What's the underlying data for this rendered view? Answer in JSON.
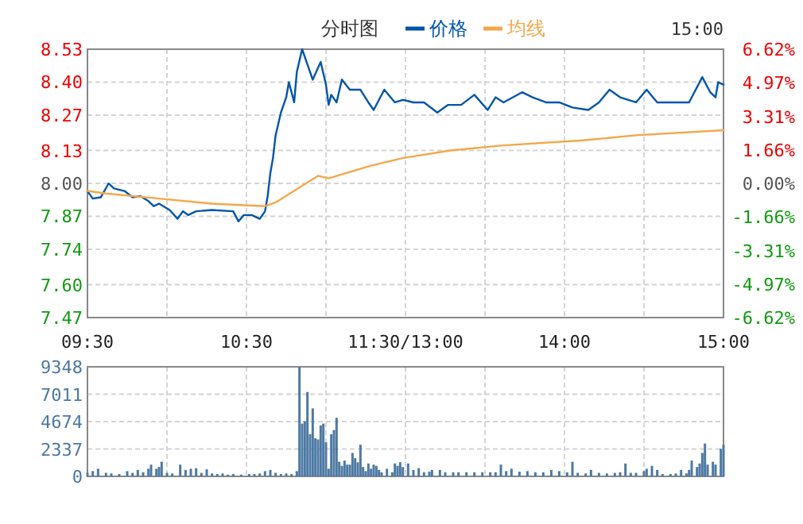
{
  "chart_data": [
    {
      "type": "line",
      "title": "分时图",
      "legend": "top",
      "grid": true,
      "annotations": [
        "15:00"
      ],
      "categories": [
        "09:30",
        null,
        null,
        null,
        null,
        null,
        null,
        null,
        null,
        null,
        null,
        null,
        null,
        null,
        null,
        null,
        null,
        null,
        null,
        null,
        null,
        null,
        null,
        null,
        null,
        null,
        null,
        null,
        null,
        null,
        null,
        null,
        null,
        null,
        null,
        null,
        null,
        null,
        null,
        null,
        null,
        null,
        null,
        null,
        null,
        null,
        null,
        null,
        null,
        null,
        null,
        null,
        null,
        null,
        null,
        null,
        null,
        null,
        null,
        null,
        "10:30",
        null,
        null,
        null,
        null,
        null,
        null,
        null,
        null,
        null,
        null,
        null,
        null,
        null,
        null,
        null,
        null,
        null,
        null,
        null,
        null,
        null,
        null,
        null,
        null,
        null,
        null,
        null,
        null,
        null,
        null,
        null,
        null,
        null,
        null,
        null,
        null,
        null,
        null,
        null,
        null,
        null,
        null,
        null,
        null,
        null,
        null,
        null,
        null,
        null,
        null,
        null,
        null,
        null,
        null,
        null,
        null,
        null,
        null,
        null,
        "11:30/13:00",
        null,
        null,
        null,
        null,
        null,
        null,
        null,
        null,
        null,
        null,
        null,
        null,
        null,
        null,
        null,
        null,
        null,
        null,
        null,
        null,
        null,
        null,
        null,
        null,
        null,
        null,
        null,
        null,
        null,
        null,
        null,
        null,
        null,
        null,
        null,
        null,
        null,
        null,
        null,
        null,
        null,
        null,
        null,
        null,
        null,
        null,
        null,
        null,
        null,
        null,
        null,
        null,
        null,
        null,
        null,
        null,
        null,
        null,
        null,
        "14:00",
        null,
        null,
        null,
        null,
        null,
        null,
        null,
        null,
        null,
        null,
        null,
        null,
        null,
        null,
        null,
        null,
        null,
        null,
        null,
        null,
        null,
        null,
        null,
        null,
        null,
        null,
        null,
        null,
        null,
        null,
        null,
        null,
        null,
        null,
        null,
        null,
        null,
        null,
        null,
        null,
        null,
        null,
        null,
        null,
        null,
        null,
        null,
        null,
        null,
        null,
        null,
        null,
        null,
        null,
        null,
        null,
        null,
        null,
        null,
        "15:00"
      ],
      "ylim": [
        7.47,
        8.53
      ],
      "yticks": [
        {
          "value": 7.47,
          "label": "7.47"
        },
        {
          "value": 7.6,
          "label": "7.60"
        },
        {
          "value": 7.74,
          "label": "7.74"
        },
        {
          "value": 7.87,
          "label": "7.87"
        },
        {
          "value": 8.0,
          "label": "8.00"
        },
        {
          "value": 8.13,
          "label": "8.13"
        },
        {
          "value": 8.27,
          "label": "8.27"
        },
        {
          "value": 8.4,
          "label": "8.40"
        },
        {
          "value": 8.53,
          "label": "8.53"
        }
      ],
      "y2lim": [
        -6.62,
        6.62
      ],
      "y2ticks": [
        {
          "value": -6.62,
          "label": "-6.62%"
        },
        {
          "value": -4.97,
          "label": "-4.97%"
        },
        {
          "value": -3.31,
          "label": "-3.31%"
        },
        {
          "value": -1.66,
          "label": "-1.66%"
        },
        {
          "value": 0,
          "label": "0.00%"
        },
        {
          "value": 1.66,
          "label": "1.66%"
        },
        {
          "value": 3.31,
          "label": "3.31%"
        },
        {
          "value": 4.97,
          "label": "4.97%"
        },
        {
          "value": 6.62,
          "label": "6.62%"
        }
      ],
      "series": [
        {
          "name": "价格",
          "color": "#0055aa",
          "values": [
            7.97,
            null,
            7.94,
            null,
            null,
            7.945,
            null,
            null,
            8.0,
            null,
            7.98,
            null,
            null,
            null,
            7.97,
            null,
            null,
            7.945,
            null,
            null,
            7.95,
            null,
            null,
            7.93,
            null,
            7.91,
            null,
            7.92,
            null,
            null,
            null,
            7.895,
            null,
            null,
            7.86,
            null,
            7.89,
            null,
            7.875,
            null,
            null,
            7.89,
            null,
            null,
            null,
            null,
            null,
            7.895,
            null,
            null,
            null,
            null,
            null,
            null,
            null,
            7.89,
            null,
            7.85,
            null,
            7.875,
            null,
            null,
            7.875,
            null,
            null,
            7.86,
            null,
            7.89,
            7.95,
            8.04,
            8.1,
            8.19,
            null,
            8.28,
            null,
            8.34,
            8.4,
            null,
            8.32,
            8.44,
            null,
            8.53,
            null,
            8.47,
            null,
            8.41,
            null,
            null,
            8.48,
            null,
            8.39,
            8.31,
            8.35,
            null,
            8.32,
            null,
            8.41,
            null,
            null,
            8.37,
            null,
            null,
            null,
            8.37,
            null,
            null,
            8.32,
            null,
            8.29,
            null,
            null,
            null,
            8.37,
            null,
            null,
            null,
            8.32,
            null,
            null,
            8.33,
            null,
            null,
            null,
            8.32,
            null,
            null,
            null,
            8.32,
            null,
            null,
            null,
            null,
            8.28,
            null,
            null,
            null,
            8.31,
            null,
            null,
            null,
            null,
            8.31,
            null,
            null,
            null,
            null,
            8.35,
            null,
            null,
            null,
            null,
            8.29,
            null,
            null,
            8.34,
            null,
            null,
            8.32,
            null,
            null,
            null,
            null,
            null,
            null,
            8.36,
            null,
            null,
            null,
            8.34,
            null,
            null,
            null,
            null,
            8.32,
            null,
            null,
            null,
            null,
            8.32,
            null,
            null,
            null,
            null,
            8.3,
            null,
            null,
            null,
            null,
            null,
            8.29,
            null,
            null,
            null,
            8.32,
            null,
            null,
            null,
            8.37,
            null,
            null,
            null,
            8.34,
            null,
            null,
            null,
            null,
            null,
            8.32,
            null,
            null,
            null,
            8.37,
            null,
            null,
            null,
            8.32,
            null,
            null,
            null,
            null,
            null,
            8.32,
            null,
            null,
            null,
            null,
            null,
            8.32,
            null,
            null,
            null,
            null,
            8.42,
            null,
            null,
            8.36,
            null,
            8.34,
            8.4,
            null,
            8.39
          ]
        },
        {
          "name": "均线",
          "color": "#f5a64a",
          "values": [
            7.97,
            null,
            null,
            null,
            null,
            null,
            null,
            7.96,
            null,
            null,
            null,
            null,
            null,
            null,
            null,
            null,
            null,
            null,
            null,
            null,
            null,
            null,
            null,
            null,
            null,
            null,
            null,
            7.94,
            null,
            null,
            null,
            null,
            null,
            null,
            null,
            null,
            null,
            null,
            null,
            null,
            null,
            null,
            null,
            null,
            null,
            null,
            null,
            7.92,
            null,
            null,
            null,
            null,
            null,
            null,
            null,
            null,
            null,
            null,
            null,
            null,
            null,
            null,
            null,
            null,
            null,
            null,
            null,
            7.91,
            null,
            null,
            null,
            7.925,
            null,
            null,
            null,
            null,
            null,
            null,
            null,
            null,
            null,
            null,
            null,
            null,
            null,
            null,
            null,
            8.03,
            null,
            null,
            null,
            8.02,
            null,
            null,
            null,
            null,
            null,
            null,
            null,
            null,
            null,
            null,
            null,
            null,
            null,
            null,
            null,
            8.07,
            null,
            null,
            null,
            null,
            null,
            null,
            null,
            null,
            null,
            null,
            null,
            8.1,
            null,
            null,
            null,
            null,
            null,
            null,
            null,
            null,
            null,
            null,
            null,
            null,
            null,
            null,
            null,
            null,
            null,
            8.13,
            null,
            null,
            null,
            null,
            null,
            null,
            null,
            null,
            null,
            null,
            null,
            null,
            null,
            null,
            null,
            null,
            null,
            null,
            null,
            8.15,
            null,
            null,
            null,
            null,
            null,
            null,
            null,
            null,
            null,
            null,
            null,
            null,
            null,
            null,
            null,
            null,
            null,
            null,
            null,
            null,
            null,
            null,
            null,
            null,
            null,
            null,
            null,
            null,
            null,
            8.17,
            null,
            null,
            null,
            null,
            null,
            null,
            null,
            null,
            null,
            null,
            null,
            null,
            null,
            null,
            null,
            null,
            null,
            null,
            null,
            8.19,
            null,
            null,
            null,
            null,
            null,
            null,
            null,
            null,
            null,
            null,
            null,
            null,
            null,
            null,
            null,
            null,
            null,
            null,
            null,
            null,
            null,
            null,
            null,
            null,
            null,
            null,
            null,
            null,
            null,
            null,
            null,
            null,
            8.21
          ]
        }
      ]
    },
    {
      "type": "bar",
      "color": "#4d79a3",
      "grid": true,
      "tick_labels": "y",
      "categories": [
        null,
        null,
        null,
        null,
        null,
        null,
        null,
        null,
        null,
        null,
        null,
        null,
        null,
        null,
        null,
        null,
        null,
        null,
        null,
        null,
        null,
        null,
        null,
        null,
        null,
        null,
        null,
        null,
        null,
        null,
        null,
        null,
        null,
        null,
        null,
        null,
        null,
        null,
        null,
        null,
        null,
        null,
        null,
        null,
        null,
        null,
        null,
        null,
        null,
        null,
        null,
        null,
        null,
        null,
        null,
        null,
        null,
        null,
        null,
        null,
        null,
        null,
        null,
        null,
        null,
        null,
        null,
        null,
        null,
        null,
        null,
        null,
        null,
        null,
        null,
        null,
        null,
        null,
        null,
        null,
        null,
        null,
        null,
        null,
        null,
        null,
        null,
        null,
        null,
        null,
        null,
        null,
        null,
        null,
        null,
        null,
        null,
        null,
        null,
        null,
        null,
        null,
        null,
        null,
        null,
        null,
        null,
        null,
        null,
        null,
        null,
        null,
        null,
        null,
        null,
        null,
        null,
        null,
        null,
        null,
        null,
        null,
        null,
        null,
        null,
        null,
        null,
        null,
        null,
        null,
        null,
        null,
        null,
        null,
        null,
        null,
        null,
        null,
        null,
        null,
        null,
        null,
        null,
        null,
        null,
        null,
        null,
        null,
        null,
        null,
        null,
        null,
        null,
        null,
        null,
        null,
        null,
        null,
        null,
        null,
        null,
        null,
        null,
        null,
        null,
        null,
        null,
        null,
        null,
        null,
        null,
        null,
        null,
        null,
        null,
        null,
        null,
        null,
        null,
        null,
        null,
        null,
        null,
        null,
        null,
        null,
        null,
        null,
        null,
        null,
        null,
        null,
        null,
        null,
        null,
        null,
        null,
        null,
        null,
        null,
        null,
        null,
        null,
        null,
        null,
        null,
        null,
        null,
        null,
        null,
        null,
        null,
        null,
        null,
        null,
        null,
        null,
        null,
        null,
        null,
        null,
        null,
        null,
        null,
        null,
        null,
        null,
        null,
        null,
        null,
        null,
        null,
        null,
        null,
        null,
        null,
        null,
        null,
        null,
        null,
        null
      ],
      "ylim": [
        0,
        9348
      ],
      "yticks": [
        0,
        2337,
        4674,
        7011,
        9348
      ],
      "values": [
        300,
        null,
        450,
        null,
        650,
        null,
        null,
        300,
        null,
        250,
        null,
        null,
        200,
        null,
        null,
        450,
        null,
        300,
        null,
        550,
        null,
        350,
        null,
        650,
        1000,
        null,
        650,
        800,
        1250,
        null,
        300,
        null,
        250,
        null,
        null,
        1000,
        null,
        550,
        null,
        650,
        null,
        700,
        null,
        300,
        null,
        600,
        null,
        250,
        null,
        200,
        null,
        250,
        null,
        150,
        null,
        200,
        null,
        null,
        150,
        null,
        null,
        200,
        null,
        200,
        null,
        250,
        null,
        450,
        null,
        550,
        null,
        300,
        null,
        200,
        null,
        250,
        null,
        200,
        null,
        450,
        9348,
        4500,
        4700,
        7200,
        3600,
        5800,
        3250,
        3150,
        4350,
        4500,
        2900,
        650,
        3600,
        3950,
        5000,
        1250,
        900,
        1350,
        1000,
        1000,
        2000,
        1550,
        1200,
        2700,
        800,
        450,
        1100,
        650,
        1000,
        900,
        550,
        350,
        null,
        650,
        null,
        350,
        1100,
        900,
        1200,
        800,
        null,
        1100,
        null,
        550,
        null,
        700,
        null,
        350,
        null,
        400,
        550,
        null,
        null,
        550,
        null,
        350,
        null,
        null,
        350,
        null,
        350,
        null,
        null,
        350,
        null,
        null,
        350,
        null,
        null,
        350,
        null,
        null,
        350,
        null,
        350,
        null,
        1000,
        null,
        450,
        null,
        650,
        null,
        null,
        400,
        null,
        null,
        450,
        null,
        null,
        350,
        null,
        null,
        350,
        null,
        null,
        550,
        null,
        null,
        450,
        null,
        null,
        350,
        null,
        1250,
        null,
        300,
        null,
        null,
        250,
        null,
        550,
        null,
        null,
        300,
        null,
        null,
        250,
        null,
        null,
        300,
        null,
        350,
        null,
        1100,
        null,
        300,
        null,
        300,
        null,
        null,
        450,
        650,
        null,
        900,
        null,
        550,
        null,
        200,
        null,
        null,
        200,
        null,
        250,
        null,
        550,
        null,
        250,
        550,
        1350,
        null,
        800,
        1100,
        2000,
        2800,
        1000,
        null,
        1250,
        1000,
        null,
        2350,
        2700
      ]
    }
  ]
}
